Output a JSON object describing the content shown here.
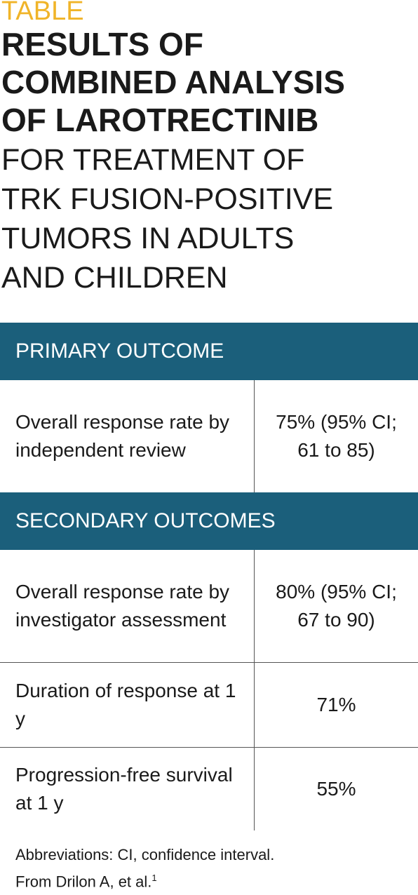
{
  "header": {
    "label": "TABLE",
    "title_lines": [
      "RESULTS OF",
      "COMBINED ANALYSIS",
      "OF LAROTRECTINIB"
    ],
    "subtitle_lines": [
      "FOR TREATMENT OF",
      "TRK FUSION-POSITIVE",
      "TUMORS IN ADULTS",
      "AND CHILDREN"
    ]
  },
  "table": {
    "sections": [
      {
        "heading": "PRIMARY OUTCOME",
        "rows": [
          [
            "Overall response rate by independent review",
            "75% (95% CI; 61 to 85)"
          ]
        ]
      },
      {
        "heading": "SECONDARY OUTCOMES",
        "rows": [
          [
            "Overall response rate by investigator assessment",
            "80% (95% CI; 67 to 90)"
          ],
          [
            "Duration of response at 1 y",
            "71%"
          ],
          [
            "Progression-free survival at 1 y",
            "55%"
          ]
        ]
      }
    ]
  },
  "footnote": {
    "abbreviations": "Abbreviations: CI, confidence interval.",
    "source": "From Drilon A, et al.",
    "reference": "1"
  }
}
